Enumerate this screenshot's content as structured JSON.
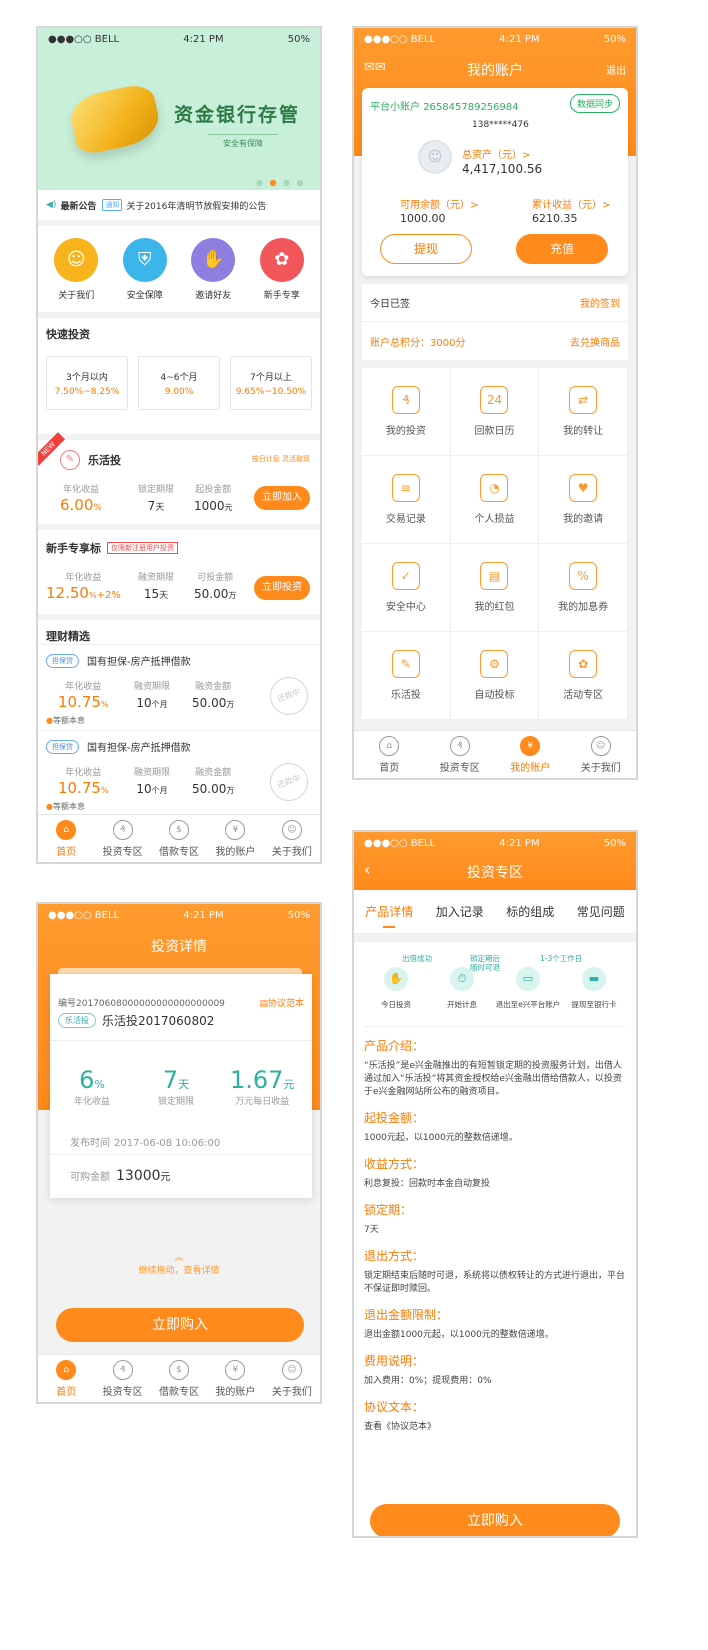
{
  "status": {
    "carrier": "●●●○○ BELL",
    "time": "4:21 PM",
    "battery": "50%"
  },
  "screen1": {
    "banner_title": "资金银行存管",
    "banner_sub": "安全有保障",
    "notice_label": "最新公告",
    "notice_tag": "通知",
    "notice_text": "关于2016年清明节放假安排的公告",
    "icons": [
      {
        "label": "关于我们",
        "color": "#f7b31b"
      },
      {
        "label": "安全保障",
        "color": "#3cb5ea"
      },
      {
        "label": "邀请好友",
        "color": "#8e7ee0"
      },
      {
        "label": "新手专享",
        "color": "#f1565b"
      }
    ],
    "quick_title": "快速投资",
    "quick": [
      {
        "term": "3个月以内",
        "rate": "7.50%~8.25%"
      },
      {
        "term": "4~6个月",
        "rate": "9.00%"
      },
      {
        "term": "7个月以上",
        "rate": "9.65%~10.50%"
      }
    ],
    "lehuo": {
      "badge": "NEW",
      "name": "乐活投",
      "tagline": "按日计息 灵活取现",
      "l1": "年化收益",
      "v1": "6.00",
      "u1": "%",
      "l2": "锁定期限",
      "v2": "7",
      "u2": "天",
      "l3": "起投金额",
      "v3": "1000",
      "u3": "元",
      "btn": "立即加入"
    },
    "newbie": {
      "title": "新手专享标",
      "tag": "仅限新注册用户投资",
      "l1": "年化收益",
      "v1": "12.50",
      "u1": "%",
      "extra": "+2%",
      "l2": "融资期限",
      "v2": "15",
      "u2": "天",
      "l3": "可投金额",
      "v3": "50.00",
      "u3": "万",
      "btn": "立即投资"
    },
    "select_title": "理财精选",
    "products": [
      {
        "tag": "担保贷",
        "title": "国有担保-房产抵押借款",
        "l1": "年化收益",
        "v1": "10.75",
        "u1": "%",
        "l2": "融资期限",
        "v2": "10",
        "u2": "个月",
        "l3": "融资金额",
        "v3": "50.00",
        "u3": "万",
        "repay": "等额本息",
        "stamp": "还款中"
      },
      {
        "tag": "担保贷",
        "title": "国有担保-房产抵押借款",
        "l1": "年化收益",
        "v1": "10.75",
        "u1": "%",
        "l2": "融资期限",
        "v2": "10",
        "u2": "个月",
        "l3": "融资金额",
        "v3": "50.00",
        "u3": "万",
        "repay": "等额本息",
        "stamp": "还款中"
      }
    ]
  },
  "tabs": [
    {
      "label": "首页",
      "icon": "home-icon",
      "g": "⌂"
    },
    {
      "label": "投资专区",
      "icon": "piggy-icon",
      "g": "₰"
    },
    {
      "label": "借款专区",
      "icon": "coin-hand-icon",
      "g": "$"
    },
    {
      "label": "我的账户",
      "icon": "money-bag-icon",
      "g": "¥"
    },
    {
      "label": "关于我们",
      "icon": "people-icon",
      "g": "☺"
    }
  ],
  "account_tabs": [
    {
      "label": "首页",
      "icon": "home-icon",
      "g": "⌂"
    },
    {
      "label": "投资专区",
      "icon": "piggy-icon",
      "g": "₰"
    },
    {
      "label": "我的账户",
      "icon": "money-bag-icon",
      "g": "¥"
    },
    {
      "label": "关于我们",
      "icon": "people-icon",
      "g": "☺"
    }
  ],
  "screen2": {
    "title": "我的账户",
    "logout": "退出",
    "platform_label": "平台小账户",
    "platform_no": "265845789256984",
    "sync": "数据同步",
    "phone": "138*****476",
    "total_label": "总资产（元）>",
    "total": "4,417,100.56",
    "avail_label": "可用余额（元）>",
    "avail": "1000.00",
    "earn_label": "累计收益（元）>",
    "earn": "6210.35",
    "withdraw": "提现",
    "recharge": "充值",
    "signed": "今日已签",
    "my_sign": "我的签到",
    "points": "账户总积分：3000分",
    "exchange": "去兑换商品",
    "grid": [
      {
        "label": "我的投资",
        "icon": "piggy-icon",
        "g": "₰"
      },
      {
        "label": "回款日历",
        "icon": "calendar-icon",
        "g": "24"
      },
      {
        "label": "我的转让",
        "icon": "transfer-icon",
        "g": "⇄"
      },
      {
        "label": "交易记录",
        "icon": "record-icon",
        "g": "≡"
      },
      {
        "label": "个人损益",
        "icon": "pie-icon",
        "g": "◔"
      },
      {
        "label": "我的邀请",
        "icon": "handshake-icon",
        "g": "♥"
      },
      {
        "label": "安全中心",
        "icon": "shield-icon",
        "g": "✓"
      },
      {
        "label": "我的红包",
        "icon": "redpacket-icon",
        "g": "▤"
      },
      {
        "label": "我的加息券",
        "icon": "coupon-icon",
        "g": "%"
      },
      {
        "label": "乐活投",
        "icon": "lehuo-icon",
        "g": "✎"
      },
      {
        "label": "自动投标",
        "icon": "auto-icon",
        "g": "⚙"
      },
      {
        "label": "活动专区",
        "icon": "gift-icon",
        "g": "✿"
      }
    ]
  },
  "screen3": {
    "title": "投资详情",
    "no_label": "编号",
    "no": "20170608000000000000000009",
    "agreement": "协议范本",
    "tag": "乐活投",
    "name": "乐活投2017060802",
    "s1v": "6",
    "s1u": "%",
    "s1l": "年化收益",
    "s2v": "7",
    "s2u": "天",
    "s2l": "锁定期限",
    "s3v": "1.67",
    "s3u": "元",
    "s3l": "万元每日收益",
    "pub_label": "发布时间",
    "pub": "2017-06-08  10:06:00",
    "avail_label": "可购金额",
    "avail": "13000",
    "avail_unit": "元",
    "drag": "继续拖动，查看详情",
    "buy": "立即购入"
  },
  "screen4": {
    "title": "投资专区",
    "tabs": [
      "产品详情",
      "加入记录",
      "标的组成",
      "常见问题"
    ],
    "steps": [
      {
        "label": "今日投资"
      },
      {
        "label": "开始计息"
      },
      {
        "label": "退出至e兴平台账户"
      },
      {
        "label": "提现至银行卡"
      }
    ],
    "step_notes": [
      "出借成功",
      "锁定期后\n随时可退",
      "1-3个工作日"
    ],
    "sections": [
      {
        "h": "产品介绍：",
        "p": "“乐活投”是e兴金融推出的有短暂锁定期的投资服务计划，出借人通过加入“乐活投”将其资金授权给e兴金融出借给借款人，以投资于e兴金融网站所公布的融资项目。"
      },
      {
        "h": "起投金额：",
        "p": "1000元起，以1000元的整数倍递增。"
      },
      {
        "h": "收益方式：",
        "p": "利息复投：回款时本金自动复投"
      },
      {
        "h": "锁定期：",
        "p": "7天"
      },
      {
        "h": "退出方式：",
        "p": "锁定期结束后随时可退，系统将以债权转让的方式进行退出，平台不保证即时赎回。"
      },
      {
        "h": "退出金额限制：",
        "p": "退出金额1000元起，以1000元的整数倍递增。"
      },
      {
        "h": "费用说明：",
        "p": "加入费用：0%；提现费用：0%"
      },
      {
        "h": "协议文本：",
        "p": "查看《协议范本》"
      }
    ],
    "buy": "立即购入"
  }
}
